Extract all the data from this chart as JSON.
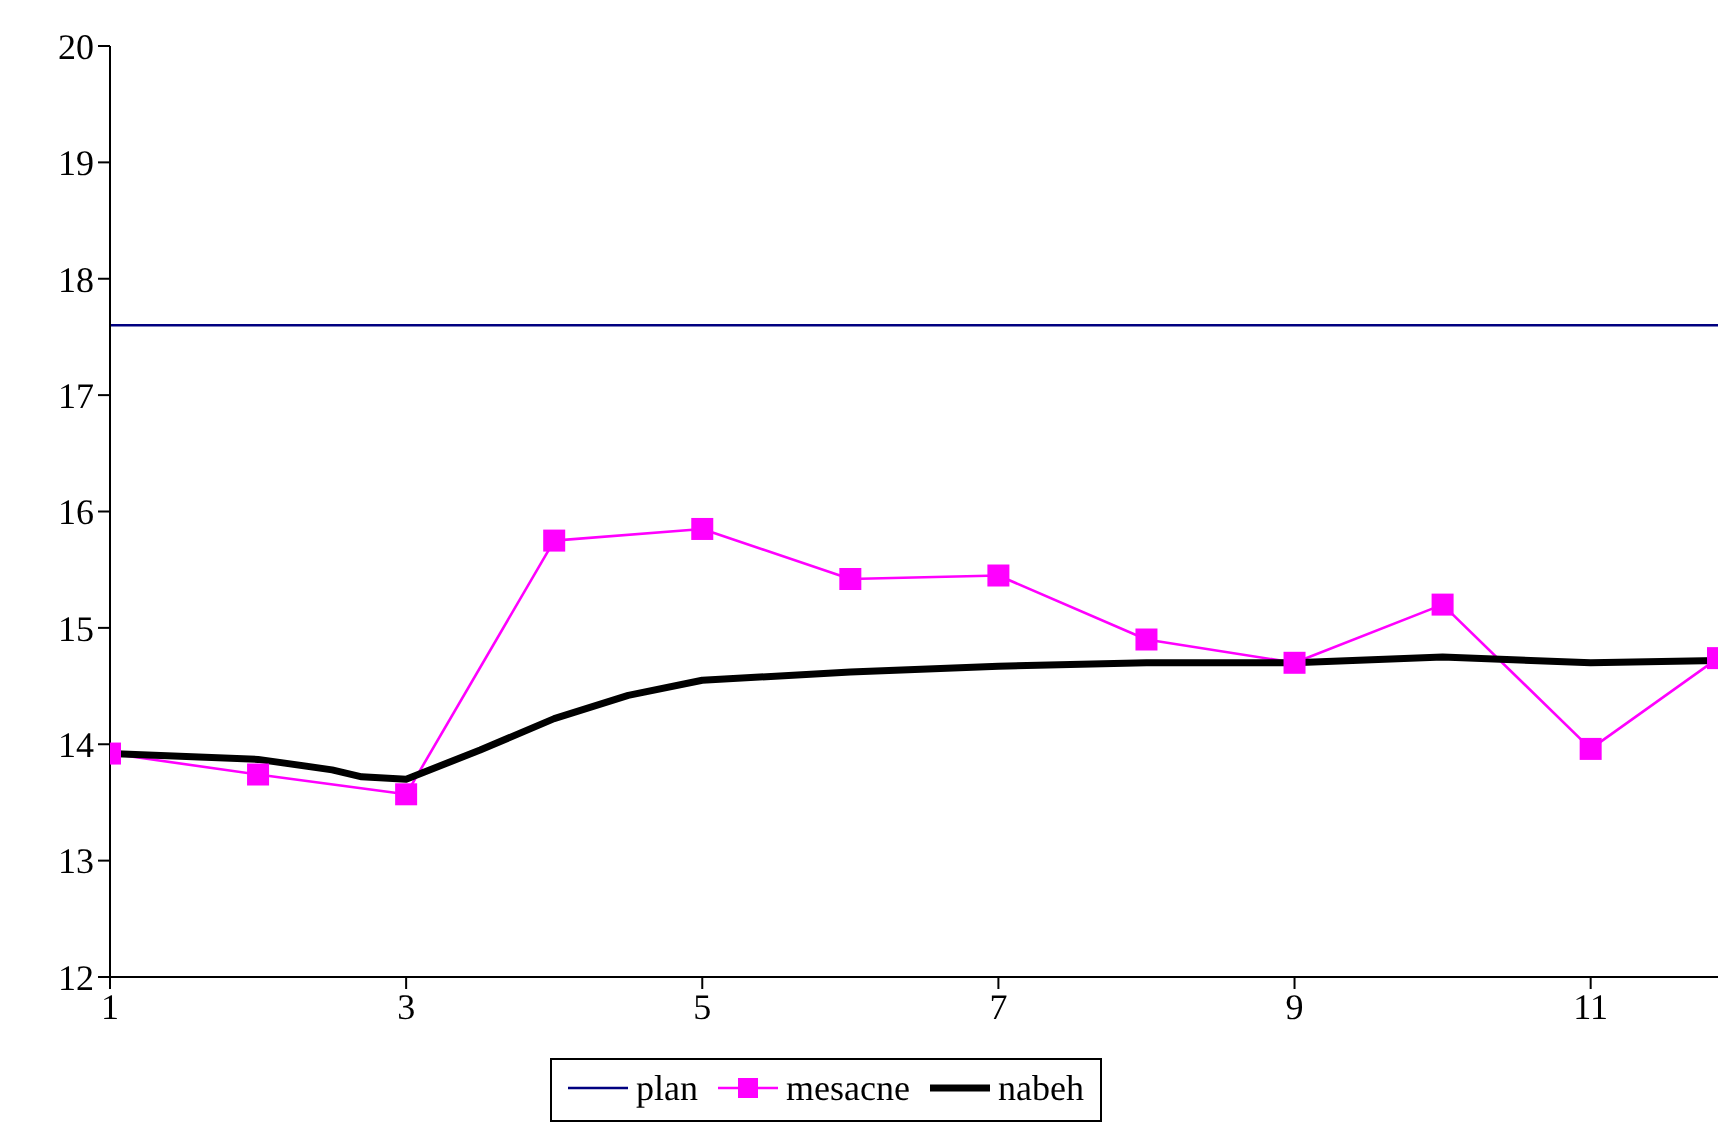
{
  "chart_data": {
    "type": "line",
    "xlim": [
      1,
      11.86
    ],
    "xticks": [
      1,
      3,
      5,
      7,
      9,
      11
    ],
    "ylim": [
      12,
      20
    ],
    "yticks": [
      12,
      13,
      14,
      15,
      16,
      17,
      18,
      19,
      20
    ],
    "grid": false,
    "legend": "bottom",
    "series": [
      {
        "name": "plan",
        "color": "#000080",
        "marker": "none",
        "x": [
          1,
          11.86
        ],
        "values": [
          17.6,
          17.6
        ]
      },
      {
        "name": "mesacne",
        "color": "#ff00ff",
        "marker": "square",
        "x": [
          1,
          2,
          3,
          4,
          5,
          6,
          7,
          8,
          9,
          10,
          11,
          11.86
        ],
        "values": [
          13.92,
          13.74,
          13.57,
          15.75,
          15.85,
          15.42,
          15.45,
          14.9,
          14.7,
          15.2,
          13.96,
          14.74
        ]
      },
      {
        "name": "nabeh",
        "color": "#000000",
        "marker": "none",
        "x": [
          1,
          2,
          2.5,
          2.7,
          3,
          3.5,
          4,
          4.5,
          5,
          6,
          7,
          8,
          9,
          10,
          11,
          11.86
        ],
        "values": [
          13.92,
          13.87,
          13.78,
          13.72,
          13.7,
          13.95,
          14.22,
          14.42,
          14.55,
          14.62,
          14.67,
          14.7,
          14.7,
          14.75,
          14.7,
          14.72
        ]
      }
    ]
  }
}
